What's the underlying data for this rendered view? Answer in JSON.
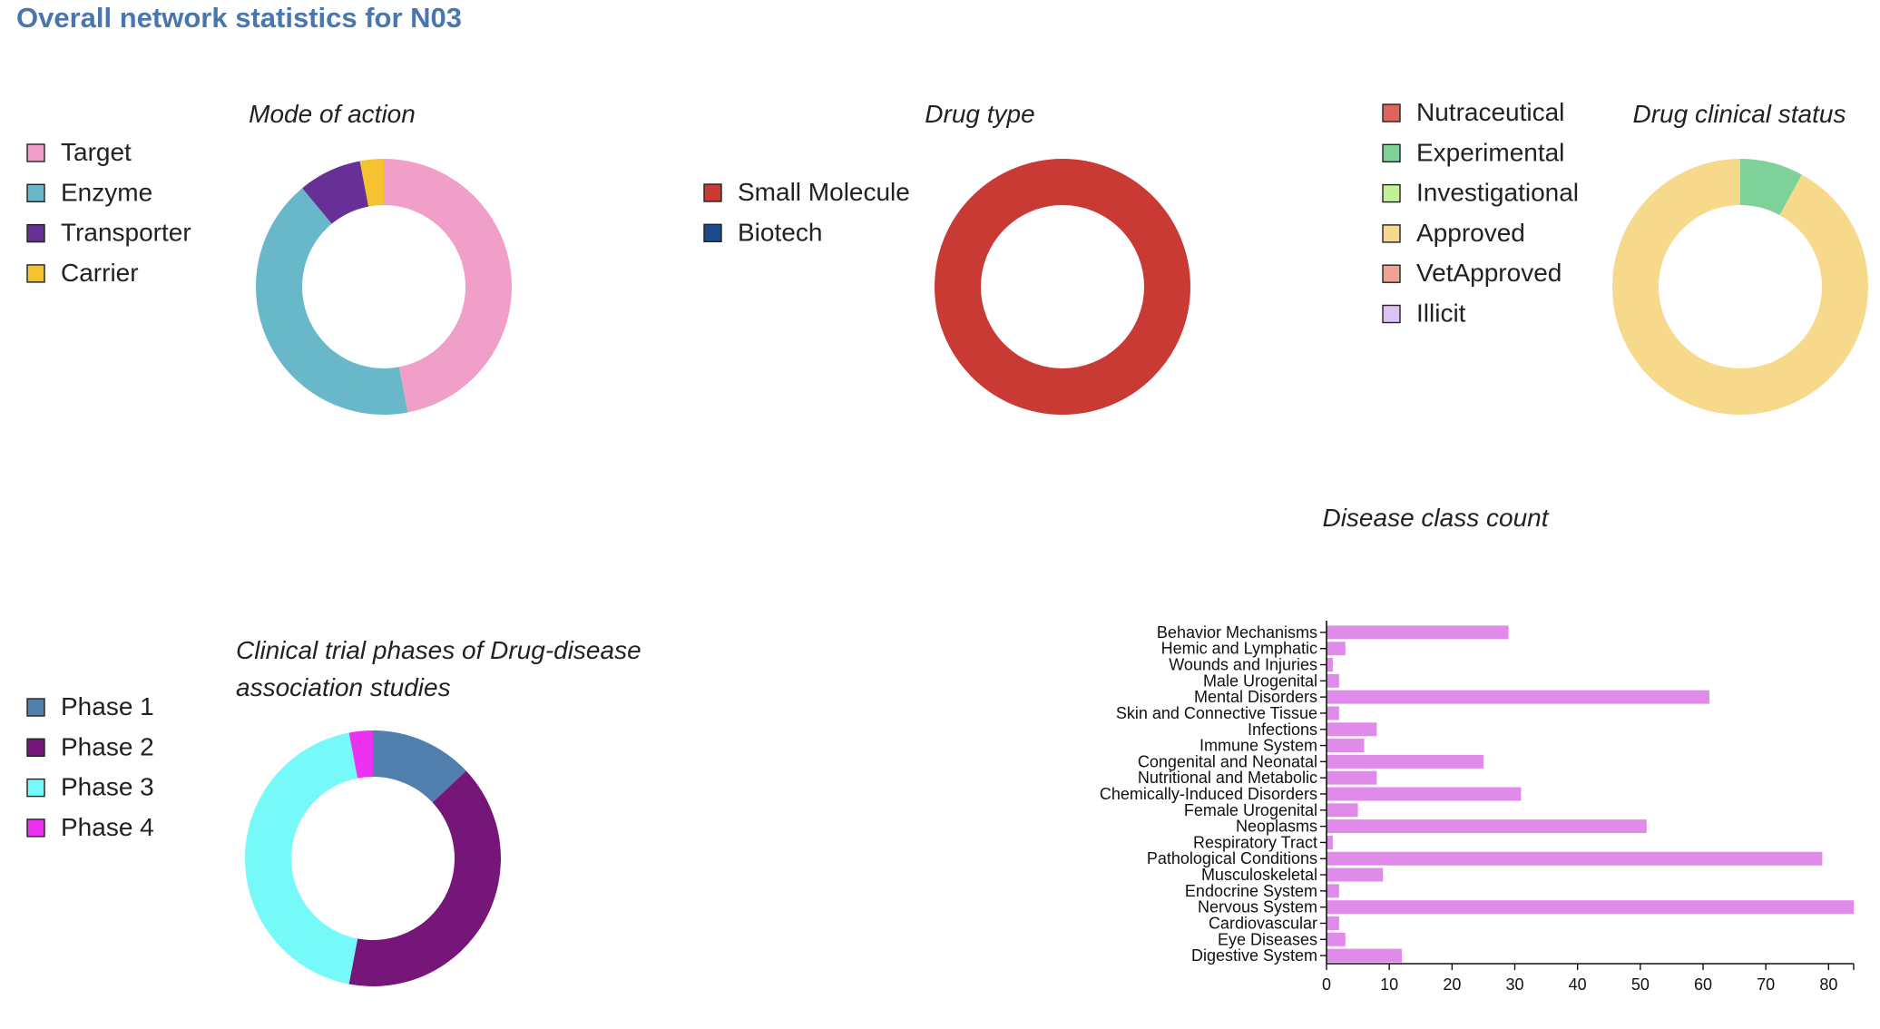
{
  "page_title": "Overall network statistics for N03",
  "chart_data": [
    {
      "id": "mode_of_action",
      "type": "pie",
      "title": [
        "Mode of action"
      ],
      "legend": [
        "Target",
        "Enzyme",
        "Transporter",
        "Carrier"
      ],
      "colors": [
        "#f0a0c8",
        "#68b8c9",
        "#673096",
        "#f5c330"
      ],
      "values": [
        47,
        42,
        8,
        3
      ]
    },
    {
      "id": "drug_type",
      "type": "pie",
      "title": [
        "Drug type"
      ],
      "legend": [
        "Small Molecule",
        "Biotech"
      ],
      "colors": [
        "#c83a33",
        "#1e4a8c"
      ],
      "values": [
        100,
        0
      ]
    },
    {
      "id": "drug_clinical_status",
      "type": "pie",
      "title": [
        "Drug clinical status"
      ],
      "legend": [
        "Nutraceutical",
        "Experimental",
        "Investigational",
        "Approved",
        "VetApproved",
        "Illicit"
      ],
      "colors": [
        "#e0645e",
        "#7fd19a",
        "#c3f195",
        "#f7d98c",
        "#f0a293",
        "#dcc2f5"
      ],
      "values": [
        0,
        8,
        0,
        92,
        0,
        0
      ]
    },
    {
      "id": "clinical_trial_phases",
      "type": "pie",
      "title": [
        "Clinical trial phases of Drug-disease",
        "association studies"
      ],
      "legend": [
        "Phase 1",
        "Phase 2",
        "Phase 3",
        "Phase 4"
      ],
      "colors": [
        "#5280ae",
        "#751678",
        "#75f9f9",
        "#ec32f0"
      ],
      "values": [
        13,
        40,
        44,
        3
      ]
    },
    {
      "id": "disease_class_count",
      "type": "bar",
      "orientation": "horizontal",
      "title": [
        "Disease class count"
      ],
      "color": "#e08ae9",
      "categories": [
        "Behavior Mechanisms",
        "Hemic and Lymphatic",
        "Wounds and Injuries",
        "Male Urogenital",
        "Mental Disorders",
        "Skin and Connective Tissue",
        "Infections",
        "Immune System",
        "Congenital and Neonatal",
        "Nutritional and Metabolic",
        "Chemically-Induced Disorders",
        "Female Urogenital",
        "Neoplasms",
        "Respiratory Tract",
        "Pathological Conditions",
        "Musculoskeletal",
        "Endocrine System",
        "Nervous System",
        "Cardiovascular",
        "Eye Diseases",
        "Digestive System"
      ],
      "values": [
        29,
        3,
        1,
        2,
        61,
        2,
        8,
        6,
        25,
        8,
        31,
        5,
        51,
        1,
        79,
        9,
        2,
        84,
        2,
        3,
        12
      ],
      "xlim": [
        0,
        84
      ],
      "xticks": [
        0,
        10,
        20,
        30,
        40,
        50,
        60,
        70,
        80
      ]
    }
  ]
}
